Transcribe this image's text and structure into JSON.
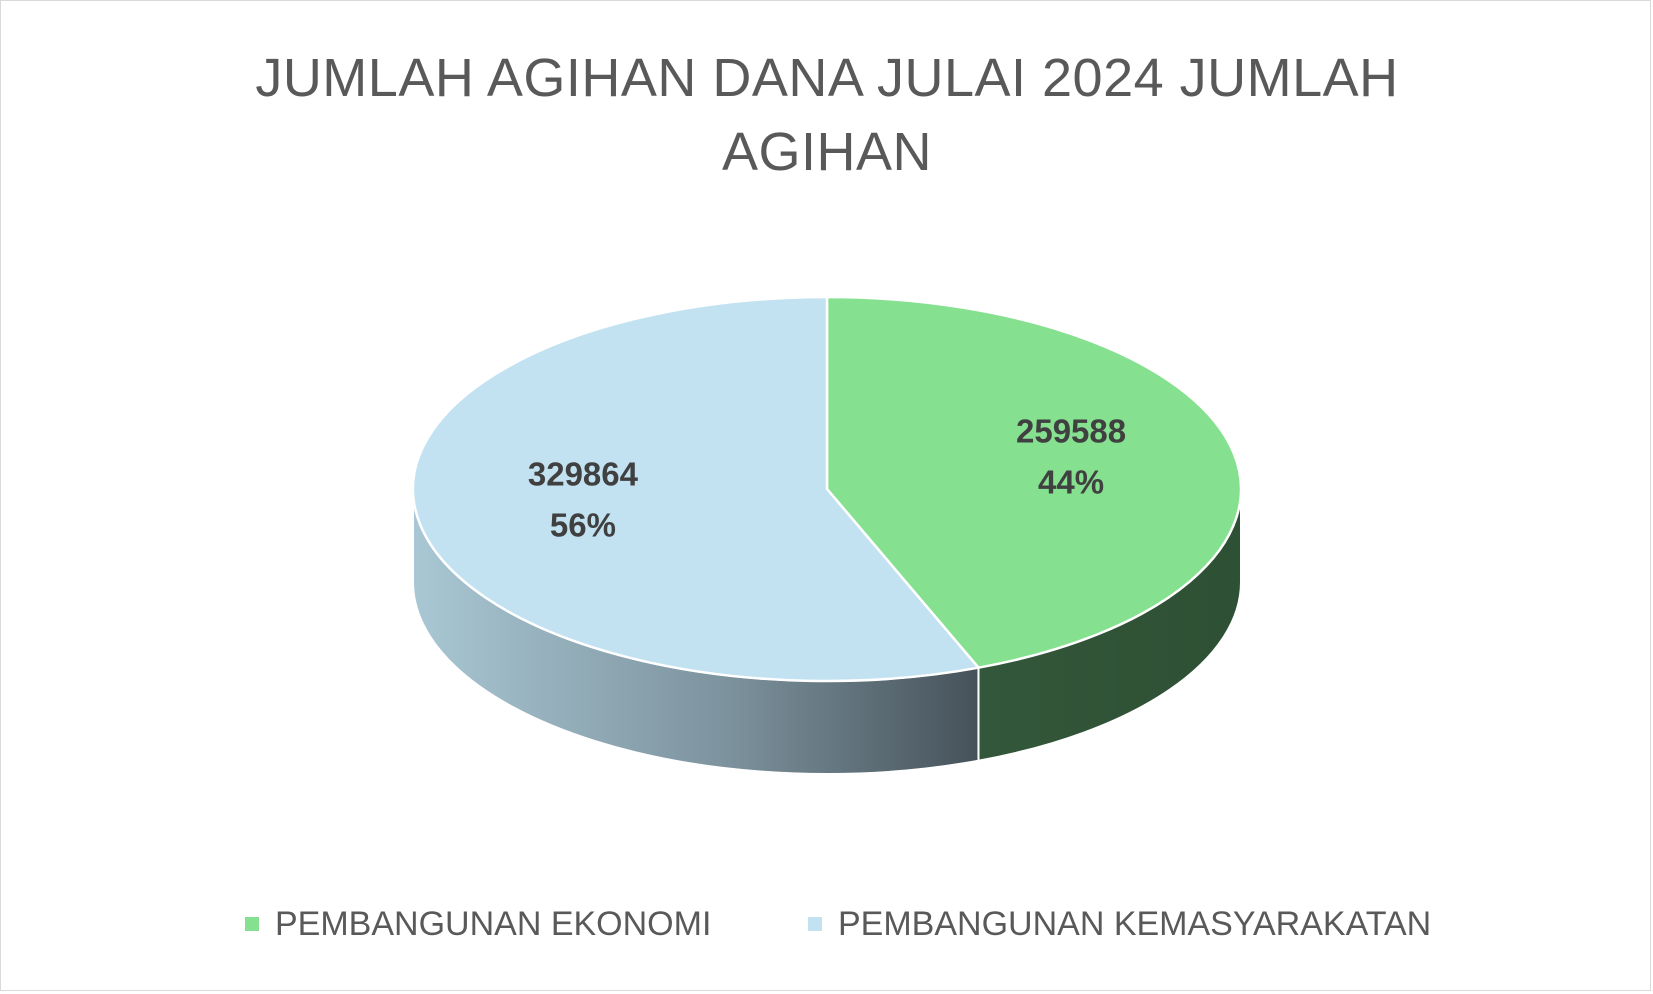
{
  "chart_data": {
    "type": "pie",
    "title": "JUMLAH AGIHAN DANA JULAI 2024 JUMLAH AGIHAN",
    "categories": [
      "PEMBANGUNAN EKONOMI",
      "PEMBANGUNAN KEMASYARAKATAN"
    ],
    "values": [
      259588,
      329864
    ],
    "value_labels": [
      "259588",
      "329864"
    ],
    "percent_labels": [
      "44%",
      "56%"
    ],
    "colors": [
      "#85E08F",
      "#C2E2F2"
    ],
    "style": "3d",
    "legend_position": "bottom"
  }
}
